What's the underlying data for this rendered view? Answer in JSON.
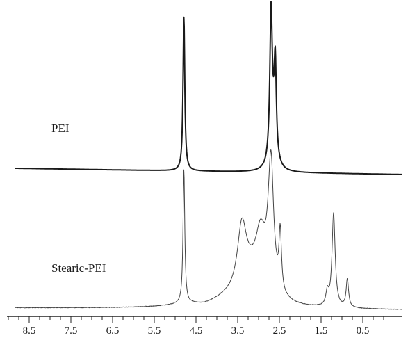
{
  "chart_data": {
    "type": "line",
    "title": "",
    "xlabel": "",
    "ylabel": "",
    "x_axis": {
      "reversed": true,
      "range": [
        9.25,
        -0.2
      ],
      "tick_labels": [
        "8.5",
        "7.5",
        "6.5",
        "5.5",
        "4.5",
        "3.5",
        "2.5",
        "1.5",
        "0.5"
      ],
      "tick_values": [
        8.5,
        7.5,
        6.5,
        5.5,
        4.5,
        3.5,
        2.5,
        1.5,
        0.5
      ],
      "minor_tick_step": 0.25
    },
    "grid": false,
    "legend": "none",
    "series": [
      {
        "name": "PEI",
        "color": "#1a1a1a",
        "baseline": 0,
        "peaks": [
          {
            "x": 4.79,
            "height": 100,
            "width": 0.025
          },
          {
            "x": 2.7,
            "height": 92,
            "width": 0.035
          },
          {
            "x": 2.6,
            "height": 58,
            "width": 0.03
          },
          {
            "x": 2.65,
            "height": 18,
            "width": 0.09
          }
        ]
      },
      {
        "name": "Stearic-PEI",
        "color": "#444444",
        "baseline": 0,
        "peaks": [
          {
            "x": 4.79,
            "height": 100,
            "width": 0.025
          },
          {
            "x": 3.4,
            "height": 46,
            "width": 0.13
          },
          {
            "x": 2.95,
            "height": 40,
            "width": 0.15
          },
          {
            "x": 2.7,
            "height": 70,
            "width": 0.07
          },
          {
            "x": 2.72,
            "height": 30,
            "width": 0.11
          },
          {
            "x": 2.48,
            "height": 44,
            "width": 0.035
          },
          {
            "x": 3.2,
            "height": 18,
            "width": 0.3
          },
          {
            "x": 1.35,
            "height": 10,
            "width": 0.04
          },
          {
            "x": 1.2,
            "height": 70,
            "width": 0.045
          },
          {
            "x": 0.87,
            "height": 21,
            "width": 0.035
          },
          {
            "x": 4.0,
            "height": 6,
            "width": 0.8
          }
        ]
      }
    ]
  }
}
